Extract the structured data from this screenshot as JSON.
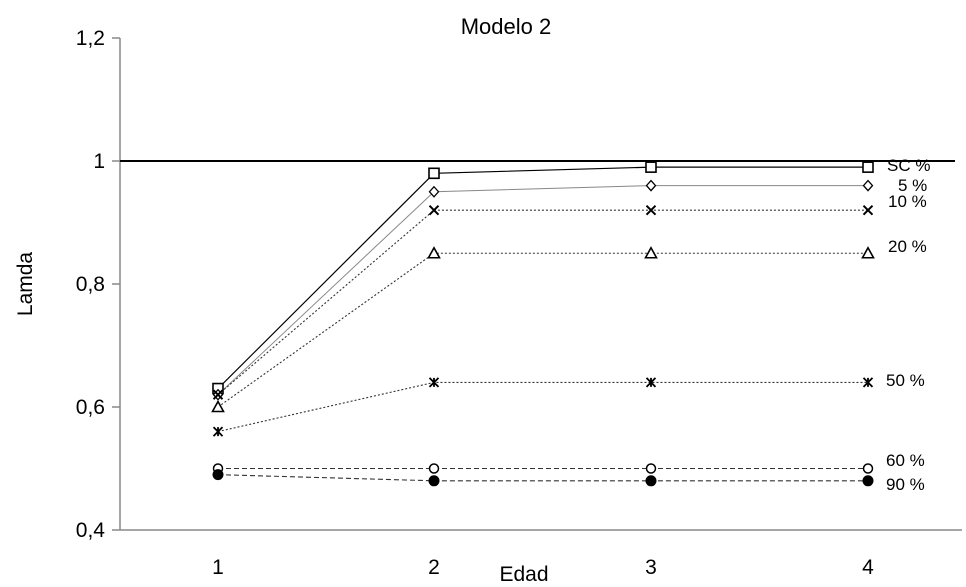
{
  "chart_data": {
    "type": "line",
    "title": "Modelo 2",
    "xlabel": "Edad",
    "ylabel": "Lamda",
    "x": [
      1,
      2,
      3,
      4
    ],
    "x_tick_labels": [
      "1",
      "2",
      "3",
      "4"
    ],
    "ylim": [
      0.4,
      1.2
    ],
    "y_ticks": [
      0.4,
      0.6,
      0.8,
      1.0,
      1.2
    ],
    "y_tick_labels": [
      "0,4",
      "0,6",
      "0,8",
      "1",
      "1,2"
    ],
    "reference_line": 1.0,
    "grid": false,
    "series": [
      {
        "name": "SC %",
        "values": [
          0.63,
          0.98,
          0.99,
          0.99
        ],
        "marker": "square",
        "line": "solid",
        "color": "#000000"
      },
      {
        "name": "5 %",
        "values": [
          0.62,
          0.95,
          0.96,
          0.96
        ],
        "marker": "diamond",
        "line": "solid-light",
        "color": "#888888"
      },
      {
        "name": "10 %",
        "values": [
          0.62,
          0.92,
          0.92,
          0.92
        ],
        "marker": "x",
        "line": "dotted",
        "color": "#333333"
      },
      {
        "name": "20 %",
        "values": [
          0.6,
          0.85,
          0.85,
          0.85
        ],
        "marker": "triangle",
        "line": "dotted",
        "color": "#333333"
      },
      {
        "name": "50 %",
        "values": [
          0.56,
          0.64,
          0.64,
          0.64
        ],
        "marker": "star",
        "line": "dotted",
        "color": "#333333"
      },
      {
        "name": "60 %",
        "values": [
          0.5,
          0.5,
          0.5,
          0.5
        ],
        "marker": "circle-open",
        "line": "dashed",
        "color": "#333333"
      },
      {
        "name": "90 %",
        "values": [
          0.49,
          0.48,
          0.48,
          0.48
        ],
        "marker": "circle-filled",
        "line": "dashed",
        "color": "#333333"
      }
    ]
  }
}
